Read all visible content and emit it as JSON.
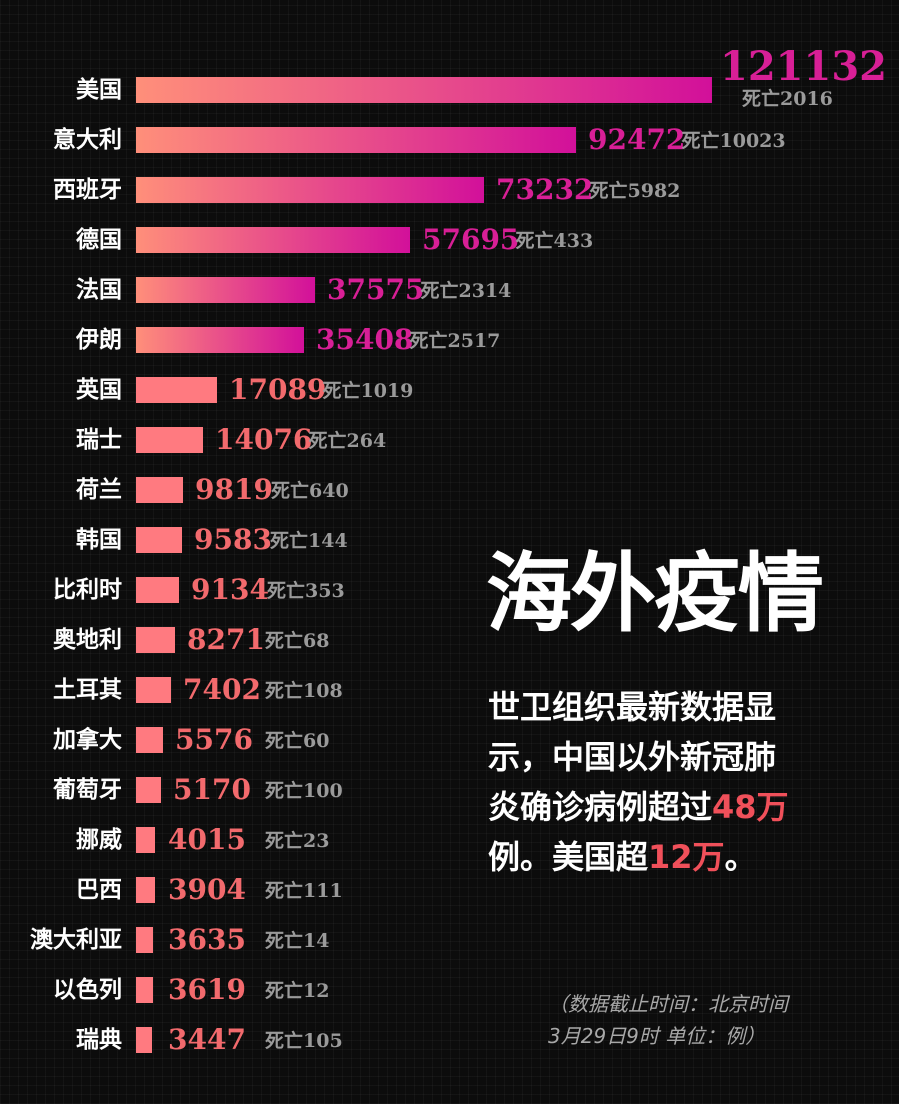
{
  "chart_data": {
    "type": "bar",
    "orientation": "horizontal",
    "categories": [
      "美国",
      "意大利",
      "西班牙",
      "德国",
      "法国",
      "伊朗",
      "英国",
      "瑞士",
      "荷兰",
      "韩国",
      "比利时",
      "奥地利",
      "土耳其",
      "加拿大",
      "葡萄牙",
      "挪威",
      "巴西",
      "澳大利亚",
      "以色列",
      "瑞典"
    ],
    "values": [
      121132,
      92472,
      73232,
      57695,
      37575,
      35408,
      17089,
      14076,
      9819,
      9583,
      9134,
      8271,
      7402,
      5576,
      5170,
      4015,
      3904,
      3635,
      3619,
      3447
    ],
    "value_labels": [
      "121132",
      "92472",
      "73232",
      "57695",
      "37575",
      "35408",
      "17089",
      "14076",
      "9819",
      "9583",
      "9134",
      "8271",
      "7402",
      "5576",
      "5170",
      "4015",
      "3904",
      "3635",
      "3619",
      "3447"
    ],
    "deaths": [
      2016,
      10023,
      5982,
      433,
      2314,
      2517,
      1019,
      264,
      640,
      144,
      353,
      68,
      108,
      60,
      100,
      23,
      111,
      14,
      12,
      105
    ],
    "death_labels": [
      "死亡2016",
      "死亡10023",
      "死亡5982",
      "死亡433",
      "死亡2314",
      "死亡2517",
      "死亡1019",
      "死亡264",
      "死亡640",
      "死亡144",
      "死亡353",
      "死亡68",
      "死亡108",
      "死亡60",
      "死亡100",
      "死亡23",
      "死亡111",
      "死亡14",
      "死亡12",
      "死亡105"
    ],
    "title": "海外疫情",
    "xlabel": "",
    "ylabel": "",
    "grid": false,
    "legend": "none"
  },
  "colors": {
    "bar_large_start": "#ff8f7a",
    "bar_large_end": "#d2109a",
    "bar_small": "#ff7a80",
    "value_large": "#d81f96",
    "value_small": "#f26a6d",
    "death_text": "#9a9a9a",
    "highlight": "#f0505a"
  },
  "description": {
    "line1": "世卫组织最新数据显",
    "line2": "示，中国以外新冠肺",
    "line3_prefix": "炎确诊病例超过",
    "line3_highlight": "48万",
    "line4_prefix": "例。美国超",
    "line4_highlight": "12万",
    "line4_suffix": "。"
  },
  "note": {
    "line1": "（数据截止时间：北京时间",
    "line2": "3月29日9时 单位：例）"
  }
}
